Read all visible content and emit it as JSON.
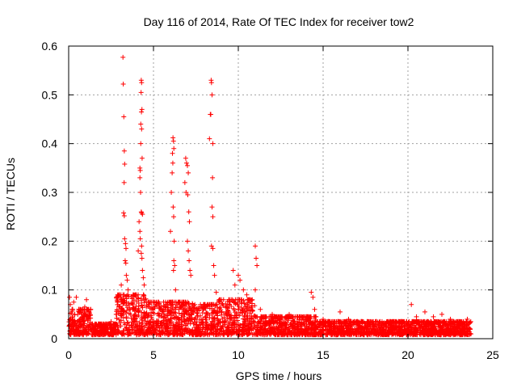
{
  "chart_data": {
    "type": "scatter",
    "title": "Day 116 of 2014, Rate Of TEC Index for receiver tow2",
    "xlabel": "GPS time / hours",
    "ylabel": "ROTI / TECUs",
    "xlim": [
      0,
      25
    ],
    "ylim": [
      0,
      0.6
    ],
    "x_ticks": [
      "0",
      "5",
      "10",
      "15",
      "20",
      "25"
    ],
    "y_ticks": [
      "0",
      "0.1",
      "0.2",
      "0.3",
      "0.4",
      "0.5",
      "0.6"
    ],
    "grid": true,
    "marker": "+",
    "color": "#ff0000",
    "series": [
      {
        "name": "ROTI",
        "points": [
          [
            0.05,
            0.085
          ],
          [
            0.1,
            0.07
          ],
          [
            0.2,
            0.06
          ],
          [
            0.3,
            0.075
          ],
          [
            0.45,
            0.085
          ],
          [
            0.6,
            0.06
          ],
          [
            0.8,
            0.045
          ],
          [
            0.95,
            0.065
          ],
          [
            1.05,
            0.08
          ],
          [
            1.15,
            0.06
          ],
          [
            1.2,
            0.055
          ],
          [
            1.5,
            0.02
          ],
          [
            2.0,
            0.025
          ],
          [
            2.5,
            0.035
          ],
          [
            2.8,
            0.05
          ],
          [
            2.9,
            0.075
          ],
          [
            3.0,
            0.09
          ],
          [
            3.1,
            0.11
          ],
          [
            3.2,
            0.577
          ],
          [
            3.22,
            0.522
          ],
          [
            3.25,
            0.455
          ],
          [
            3.28,
            0.385
          ],
          [
            3.3,
            0.358
          ],
          [
            3.27,
            0.32
          ],
          [
            3.24,
            0.258
          ],
          [
            3.28,
            0.252
          ],
          [
            3.3,
            0.205
          ],
          [
            3.35,
            0.195
          ],
          [
            3.38,
            0.185
          ],
          [
            3.33,
            0.16
          ],
          [
            3.37,
            0.155
          ],
          [
            3.4,
            0.13
          ],
          [
            3.45,
            0.12
          ],
          [
            3.5,
            0.1
          ],
          [
            4.1,
            0.18
          ],
          [
            4.15,
            0.24
          ],
          [
            4.2,
            0.35
          ],
          [
            4.22,
            0.345
          ],
          [
            4.25,
            0.44
          ],
          [
            4.28,
            0.53
          ],
          [
            4.3,
            0.525
          ],
          [
            4.27,
            0.505
          ],
          [
            4.32,
            0.47
          ],
          [
            4.29,
            0.465
          ],
          [
            4.3,
            0.43
          ],
          [
            4.25,
            0.4
          ],
          [
            4.33,
            0.37
          ],
          [
            4.2,
            0.33
          ],
          [
            4.24,
            0.3
          ],
          [
            4.28,
            0.26
          ],
          [
            4.3,
            0.258
          ],
          [
            4.35,
            0.255
          ],
          [
            4.2,
            0.22
          ],
          [
            4.22,
            0.205
          ],
          [
            4.3,
            0.19
          ],
          [
            4.28,
            0.175
          ],
          [
            4.32,
            0.165
          ],
          [
            4.35,
            0.14
          ],
          [
            4.4,
            0.125
          ],
          [
            4.45,
            0.11
          ],
          [
            6.0,
            0.22
          ],
          [
            6.05,
            0.3
          ],
          [
            6.1,
            0.34
          ],
          [
            6.12,
            0.38
          ],
          [
            6.15,
            0.412
          ],
          [
            6.18,
            0.405
          ],
          [
            6.2,
            0.39
          ],
          [
            6.14,
            0.36
          ],
          [
            6.16,
            0.27
          ],
          [
            6.19,
            0.25
          ],
          [
            6.22,
            0.2
          ],
          [
            6.2,
            0.16
          ],
          [
            6.25,
            0.15
          ],
          [
            6.18,
            0.14
          ],
          [
            6.3,
            0.1
          ],
          [
            6.85,
            0.32
          ],
          [
            6.9,
            0.37
          ],
          [
            6.95,
            0.36
          ],
          [
            7.0,
            0.355
          ],
          [
            7.05,
            0.34
          ],
          [
            6.92,
            0.3
          ],
          [
            7.02,
            0.295
          ],
          [
            7.08,
            0.26
          ],
          [
            7.12,
            0.24
          ],
          [
            7.0,
            0.2
          ],
          [
            7.05,
            0.18
          ],
          [
            7.1,
            0.16
          ],
          [
            7.15,
            0.14
          ],
          [
            7.2,
            0.13
          ],
          [
            8.3,
            0.41
          ],
          [
            8.35,
            0.46
          ],
          [
            8.4,
            0.53
          ],
          [
            8.42,
            0.525
          ],
          [
            8.45,
            0.5
          ],
          [
            8.38,
            0.46
          ],
          [
            8.5,
            0.4
          ],
          [
            8.48,
            0.33
          ],
          [
            8.45,
            0.27
          ],
          [
            8.5,
            0.25
          ],
          [
            8.42,
            0.19
          ],
          [
            8.5,
            0.185
          ],
          [
            8.55,
            0.15
          ],
          [
            8.6,
            0.13
          ],
          [
            8.7,
            0.095
          ],
          [
            9.7,
            0.14
          ],
          [
            9.8,
            0.11
          ],
          [
            10.0,
            0.13
          ],
          [
            10.1,
            0.12
          ],
          [
            10.3,
            0.1
          ],
          [
            10.5,
            0.09
          ],
          [
            11.0,
            0.19
          ],
          [
            11.05,
            0.165
          ],
          [
            11.1,
            0.15
          ],
          [
            11.0,
            0.1
          ],
          [
            11.3,
            0.06
          ],
          [
            12.0,
            0.05
          ],
          [
            13.0,
            0.05
          ],
          [
            14.3,
            0.095
          ],
          [
            14.4,
            0.085
          ],
          [
            14.5,
            0.06
          ],
          [
            15.0,
            0.04
          ],
          [
            15.5,
            0.03
          ],
          [
            16.0,
            0.055
          ],
          [
            16.5,
            0.04
          ],
          [
            17.0,
            0.035
          ],
          [
            18.0,
            0.03
          ],
          [
            19.0,
            0.035
          ],
          [
            20.2,
            0.07
          ],
          [
            20.5,
            0.045
          ],
          [
            21.0,
            0.055
          ],
          [
            21.5,
            0.045
          ],
          [
            22.0,
            0.05
          ],
          [
            22.5,
            0.04
          ],
          [
            23.0,
            0.035
          ],
          [
            23.5,
            0.04
          ]
        ]
      }
    ]
  }
}
